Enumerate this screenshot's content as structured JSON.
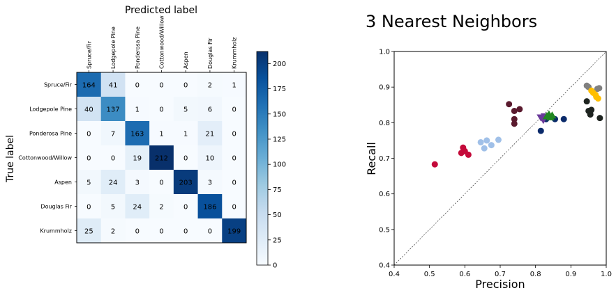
{
  "chart_data": [
    {
      "type": "heatmap",
      "title": "Predicted label",
      "ylabel": "True label",
      "xlabel": "",
      "x_categories": [
        "Spruce/Fir",
        "Lodgepole Pine",
        "Ponderosa Pine",
        "Cottonwood/Willow",
        "Aspen",
        "Douglas Fir",
        "Krummholz"
      ],
      "y_categories": [
        "Spruce/Fir",
        "Lodgepole Pine",
        "Ponderosa Pine",
        "Cottonwood/Willow",
        "Aspen",
        "Douglas Fir",
        "Krummholz"
      ],
      "values": [
        [
          164,
          41,
          0,
          0,
          0,
          2,
          1
        ],
        [
          40,
          137,
          1,
          0,
          5,
          6,
          0
        ],
        [
          0,
          7,
          163,
          1,
          1,
          21,
          0
        ],
        [
          0,
          0,
          19,
          212,
          0,
          10,
          0
        ],
        [
          5,
          24,
          3,
          0,
          203,
          3,
          0
        ],
        [
          0,
          5,
          24,
          2,
          0,
          186,
          0
        ],
        [
          25,
          2,
          0,
          0,
          0,
          0,
          199
        ]
      ],
      "colormap": "Blues",
      "colorbar": {
        "min": 0,
        "max": 212,
        "ticks": [
          0,
          25,
          50,
          75,
          100,
          125,
          150,
          175,
          200
        ]
      }
    },
    {
      "type": "scatter",
      "title": "3 Nearest Neighbors",
      "xlabel": "Precision",
      "ylabel": "Recall",
      "xlim": [
        0.4,
        1.0
      ],
      "ylim": [
        0.4,
        1.0
      ],
      "xticks": [
        "0.4",
        "0.5",
        "0.6",
        "0.7",
        "0.8",
        "0.9",
        "1.0"
      ],
      "yticks": [
        "0.4",
        "0.5",
        "0.6",
        "0.7",
        "0.8",
        "0.9",
        "1.0"
      ],
      "diagonal": true,
      "grid": false,
      "series": [
        {
          "color": "#c40a3a",
          "marker": "circle",
          "points": [
            [
              0.515,
              0.683
            ],
            [
              0.59,
              0.715
            ],
            [
              0.595,
              0.73
            ],
            [
              0.6,
              0.72
            ],
            [
              0.61,
              0.71
            ]
          ]
        },
        {
          "color": "#a0c0e8",
          "marker": "circle",
          "points": [
            [
              0.645,
              0.745
            ],
            [
              0.655,
              0.728
            ],
            [
              0.662,
              0.75
            ],
            [
              0.675,
              0.737
            ],
            [
              0.695,
              0.752
            ]
          ]
        },
        {
          "color": "#5a1a2e",
          "marker": "circle",
          "points": [
            [
              0.725,
              0.852
            ],
            [
              0.74,
              0.833
            ],
            [
              0.74,
              0.81
            ],
            [
              0.74,
              0.797
            ],
            [
              0.755,
              0.838
            ]
          ]
        },
        {
          "color": "#0a2a6a",
          "marker": "circle",
          "points": [
            [
              0.815,
              0.777
            ],
            [
              0.83,
              0.81
            ],
            [
              0.855,
              0.81
            ],
            [
              0.88,
              0.81
            ]
          ]
        },
        {
          "color": "#6a3a9a",
          "marker": "triangle-down",
          "points": [
            [
              0.815,
              0.815
            ],
            [
              0.822,
              0.808
            ],
            [
              0.826,
              0.818
            ]
          ]
        },
        {
          "color": "#228822",
          "marker": "triangle-up",
          "points": [
            [
              0.832,
              0.818
            ],
            [
              0.838,
              0.823
            ],
            [
              0.842,
              0.815
            ],
            [
              0.847,
              0.82
            ]
          ]
        },
        {
          "color": "#808080",
          "marker": "circle",
          "points": [
            [
              0.945,
              0.904
            ],
            [
              0.95,
              0.9
            ],
            [
              0.975,
              0.895
            ],
            [
              0.98,
              0.897
            ]
          ]
        },
        {
          "color": "#ffbf00",
          "marker": "circle",
          "points": [
            [
              0.958,
              0.89
            ],
            [
              0.963,
              0.884
            ],
            [
              0.97,
              0.878
            ],
            [
              0.972,
              0.872
            ],
            [
              0.977,
              0.868
            ]
          ]
        },
        {
          "color": "#1e2420",
          "marker": "circle",
          "points": [
            [
              0.945,
              0.86
            ],
            [
              0.95,
              0.833
            ],
            [
              0.955,
              0.823
            ],
            [
              0.958,
              0.836
            ],
            [
              0.982,
              0.813
            ]
          ]
        }
      ]
    }
  ]
}
